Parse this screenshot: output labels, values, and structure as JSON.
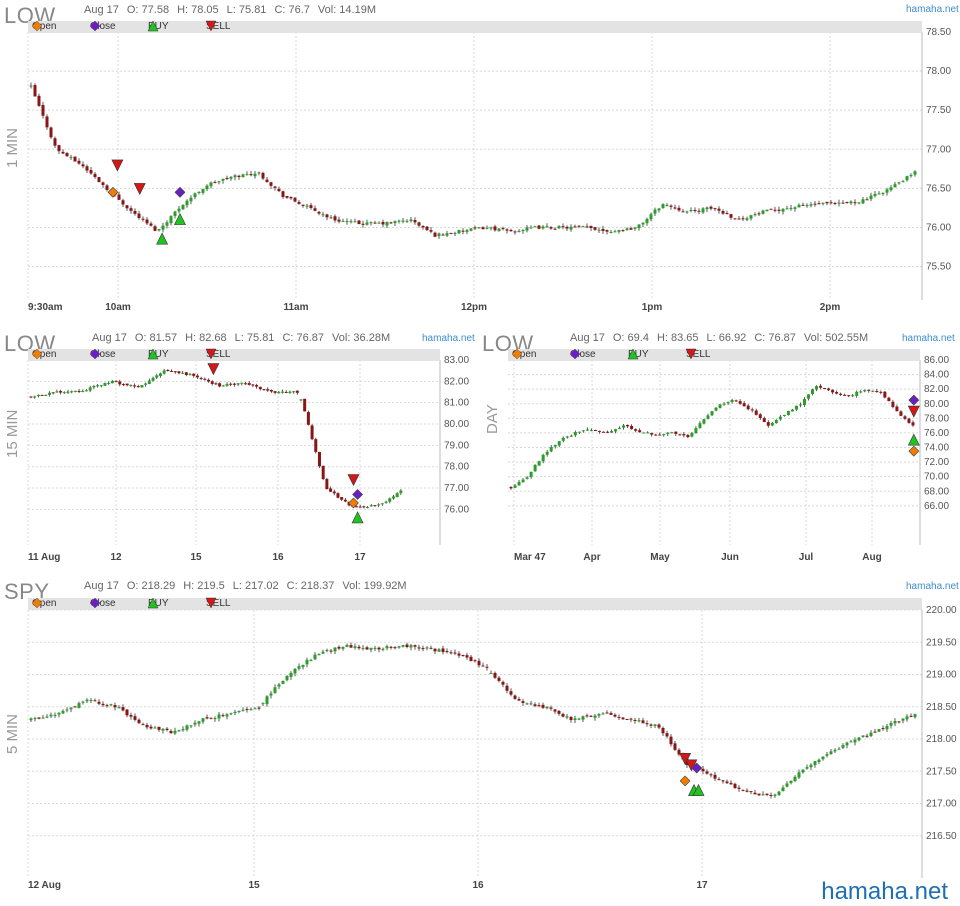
{
  "brand_footer": "hamaha.net",
  "legend": [
    {
      "label": "Open",
      "icon": "diamond-icon",
      "color": "#f07c00"
    },
    {
      "label": "Close",
      "icon": "diamond-icon",
      "color": "#6a1fc6"
    },
    {
      "label": "BUY",
      "icon": "triangle-up-icon",
      "color": "#21c321"
    },
    {
      "label": "SELL",
      "icon": "triangle-down-icon",
      "color": "#d21818"
    }
  ],
  "colors": {
    "up": "#2a9d2a",
    "down": "#8a1515",
    "grid": "#d8d8d8",
    "legend_bg": "#e3e3e3",
    "brand": "#3a8fd0"
  },
  "charts": [
    {
      "symbol": "LOW",
      "timeframe": "1 MIN",
      "brand": "hamaha.net",
      "info": {
        "date": "Aug 17",
        "open": "O: 77.58",
        "high": "H: 78.05",
        "low": "L: 75.81",
        "close": "C: 76.7",
        "vol": "Vol: 14.19M"
      },
      "chart_data": {
        "type": "candlestick",
        "y_ticks": [
          "78.50",
          "78.00",
          "77.50",
          "77.00",
          "76.50",
          "76.00",
          "75.50"
        ],
        "ylim": [
          75.2,
          78.5
        ],
        "x_ticks": [
          "9:30am",
          "10am",
          "11am",
          "12pm",
          "1pm",
          "2pm"
        ],
        "close_path": [
          77.8,
          77.0,
          76.8,
          76.5,
          76.2,
          75.95,
          76.3,
          76.55,
          76.65,
          76.7,
          76.4,
          76.25,
          76.1,
          76.05,
          76.05,
          76.1,
          75.9,
          75.95,
          76.0,
          75.95,
          76.0,
          76.0,
          76.0,
          75.95,
          76.0,
          76.3,
          76.2,
          76.25,
          76.1,
          76.2,
          76.25,
          76.3,
          76.3,
          76.35,
          76.5,
          76.7
        ],
        "markers": [
          {
            "type": "SELL",
            "x": 0.1,
            "y": 76.8
          },
          {
            "type": "SELL",
            "x": 0.125,
            "y": 76.5
          },
          {
            "type": "Open",
            "x": 0.095,
            "y": 76.45
          },
          {
            "type": "Close",
            "x": 0.17,
            "y": 76.45
          },
          {
            "type": "BUY",
            "x": 0.15,
            "y": 75.85
          },
          {
            "type": "BUY",
            "x": 0.17,
            "y": 76.1
          }
        ]
      }
    },
    {
      "symbol": "LOW",
      "timeframe": "15 MIN",
      "brand": "hamaha.net",
      "info": {
        "date": "Aug 17",
        "open": "O: 81.57",
        "high": "H: 82.68",
        "low": "L: 75.81",
        "close": "C: 76.87",
        "vol": "Vol: 36.28M"
      },
      "chart_data": {
        "type": "candlestick",
        "y_ticks": [
          "83.00",
          "82.00",
          "81.00",
          "80.00",
          "79.00",
          "78.00",
          "77.00",
          "76.00"
        ],
        "ylim": [
          74.8,
          83.0
        ],
        "x_ticks": [
          "11 Aug",
          "12",
          "15",
          "16",
          "17"
        ],
        "close_path": [
          81.3,
          81.5,
          81.6,
          82.0,
          81.7,
          82.5,
          82.3,
          81.8,
          81.9,
          81.5,
          81.5,
          77.0,
          76.1,
          76.2,
          77.0,
          76.9
        ],
        "gap_after": 10,
        "markers": [
          {
            "type": "SELL",
            "x": 0.79,
            "y": 77.4
          },
          {
            "type": "SELL",
            "x": 0.45,
            "y": 82.6
          },
          {
            "type": "Open",
            "x": 0.79,
            "y": 76.3
          },
          {
            "type": "Close",
            "x": 0.8,
            "y": 76.7
          },
          {
            "type": "BUY",
            "x": 0.8,
            "y": 75.6
          }
        ]
      }
    },
    {
      "symbol": "LOW",
      "timeframe": "DAY",
      "brand": "hamaha.net",
      "info": {
        "date": "Aug 17",
        "open": "O: 69.4",
        "high": "H: 83.65",
        "low": "L: 66.92",
        "close": "C: 76.87",
        "vol": "Vol: 502.55M"
      },
      "chart_data": {
        "type": "candlestick",
        "y_ticks": [
          "86.00",
          "84.00",
          "82.00",
          "80.00",
          "78.00",
          "76.00",
          "74.00",
          "72.00",
          "70.00",
          "68.00",
          "66.00"
        ],
        "ylim": [
          62.0,
          86.0
        ],
        "x_ticks": [
          "Mar 47",
          "Apr",
          "May",
          "Jun",
          "Jul",
          "Aug"
        ],
        "close_path": [
          68.5,
          70.0,
          73.0,
          75.0,
          76.0,
          76.5,
          76.0,
          77.0,
          76.2,
          75.8,
          76.0,
          75.5,
          78.0,
          80.0,
          80.5,
          79.0,
          77.0,
          78.5,
          80.0,
          82.5,
          81.5,
          81.0,
          82.0,
          81.5,
          79.0,
          76.9
        ],
        "markers": [
          {
            "type": "Close",
            "x": 0.985,
            "y": 80.5
          },
          {
            "type": "SELL",
            "x": 0.985,
            "y": 79.0
          },
          {
            "type": "BUY",
            "x": 0.985,
            "y": 75.0
          },
          {
            "type": "Open",
            "x": 0.985,
            "y": 73.5
          }
        ]
      }
    },
    {
      "symbol": "SPY",
      "timeframe": "5 MIN",
      "brand": "hamaha.net",
      "info": {
        "date": "Aug 17",
        "open": "O: 218.29",
        "high": "H: 219.5",
        "low": "L: 217.02",
        "close": "C: 218.37",
        "vol": "Vol: 199.92M"
      },
      "chart_data": {
        "type": "candlestick",
        "y_ticks": [
          "220.00",
          "219.50",
          "219.00",
          "218.50",
          "218.00",
          "217.50",
          "217.00",
          "216.50"
        ],
        "ylim": [
          216.0,
          220.0
        ],
        "x_ticks": [
          "12 Aug",
          "15",
          "16",
          "17"
        ],
        "close_path": [
          218.3,
          218.4,
          218.6,
          218.5,
          218.2,
          218.1,
          218.3,
          218.4,
          218.5,
          219.0,
          219.3,
          219.45,
          219.4,
          219.45,
          219.4,
          219.3,
          219.1,
          218.6,
          218.5,
          218.3,
          218.4,
          218.3,
          218.2,
          217.6,
          217.4,
          217.2,
          217.1,
          217.5,
          217.8,
          218.0,
          218.2,
          218.4
        ],
        "gaps": [
          8,
          16
        ],
        "markers": [
          {
            "type": "SELL",
            "x": 0.735,
            "y": 217.7
          },
          {
            "type": "SELL",
            "x": 0.742,
            "y": 217.6
          },
          {
            "type": "Open",
            "x": 0.735,
            "y": 217.35
          },
          {
            "type": "Close",
            "x": 0.748,
            "y": 217.55
          },
          {
            "type": "BUY",
            "x": 0.745,
            "y": 217.2
          },
          {
            "type": "BUY",
            "x": 0.75,
            "y": 217.2
          }
        ]
      }
    }
  ]
}
